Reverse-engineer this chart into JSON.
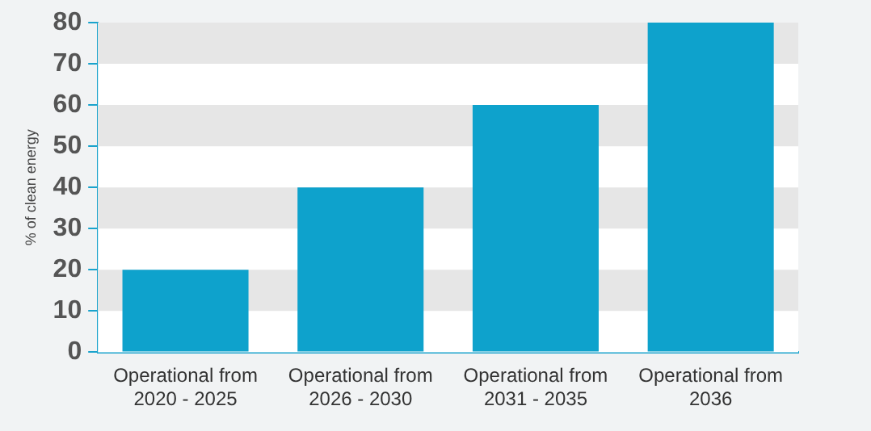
{
  "chart_data": {
    "type": "bar",
    "ylabel": "% of clean energy",
    "categories": [
      "Operational from\n2020 - 2025",
      "Operational from\n2026 - 2030",
      "Operational from\n2031 - 2035",
      "Operational from\n2036"
    ],
    "values": [
      20,
      40,
      60,
      80
    ],
    "color": "#0ea2cc",
    "ylim": [
      0,
      80
    ],
    "yticks": [
      0,
      10,
      20,
      30,
      40,
      50,
      60,
      70,
      80
    ],
    "grid": false,
    "bands": [
      {
        "axis": "y",
        "from": 10,
        "to": 20,
        "color": "#e6e6e6"
      },
      {
        "axis": "y",
        "from": 30,
        "to": 40,
        "color": "#e6e6e6"
      },
      {
        "axis": "y",
        "from": 50,
        "to": 60,
        "color": "#e6e6e6"
      },
      {
        "axis": "y",
        "from": 70,
        "to": 80,
        "color": "#e6e6e6"
      }
    ]
  }
}
